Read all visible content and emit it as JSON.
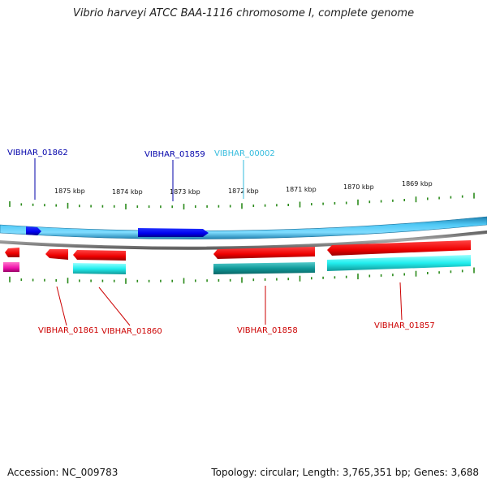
{
  "title": "Vibrio harveyi ATCC BAA-1116 chromosome I, complete genome",
  "accession_text": "Accession: NC_009783",
  "summary_text": "Topology: circular; Length: 3,765,351 bp; Genes: 3,688",
  "colors": {
    "forward_cds": "#0000ee",
    "forward_label": "#0000aa",
    "other_label": "#33bbdd",
    "reverse_cds": "#ee0000",
    "reverse_label": "#cc0000",
    "cyan_feature": "#22eeee",
    "teal_feature": "#119999",
    "magenta_feature": "#ee11aa",
    "tick": "#2a8a1a",
    "backbone": "#44bbee",
    "reverse_line": "#888888"
  },
  "kbp_labels": [
    "1875 kbp",
    "1874 kbp",
    "1873 kbp",
    "1872 kbp",
    "1871 kbp",
    "1870 kbp",
    "1869 kbp"
  ],
  "upper_labels": [
    {
      "text": "VIBHAR_01862",
      "kind": "forward"
    },
    {
      "text": "VIBHAR_01859",
      "kind": "forward"
    },
    {
      "text": "VIBHAR_00002",
      "kind": "other"
    }
  ],
  "lower_labels": [
    {
      "text": "VIBHAR_01861"
    },
    {
      "text": "VIBHAR_01860"
    },
    {
      "text": "VIBHAR_01858"
    },
    {
      "text": "VIBHAR_01857"
    }
  ]
}
